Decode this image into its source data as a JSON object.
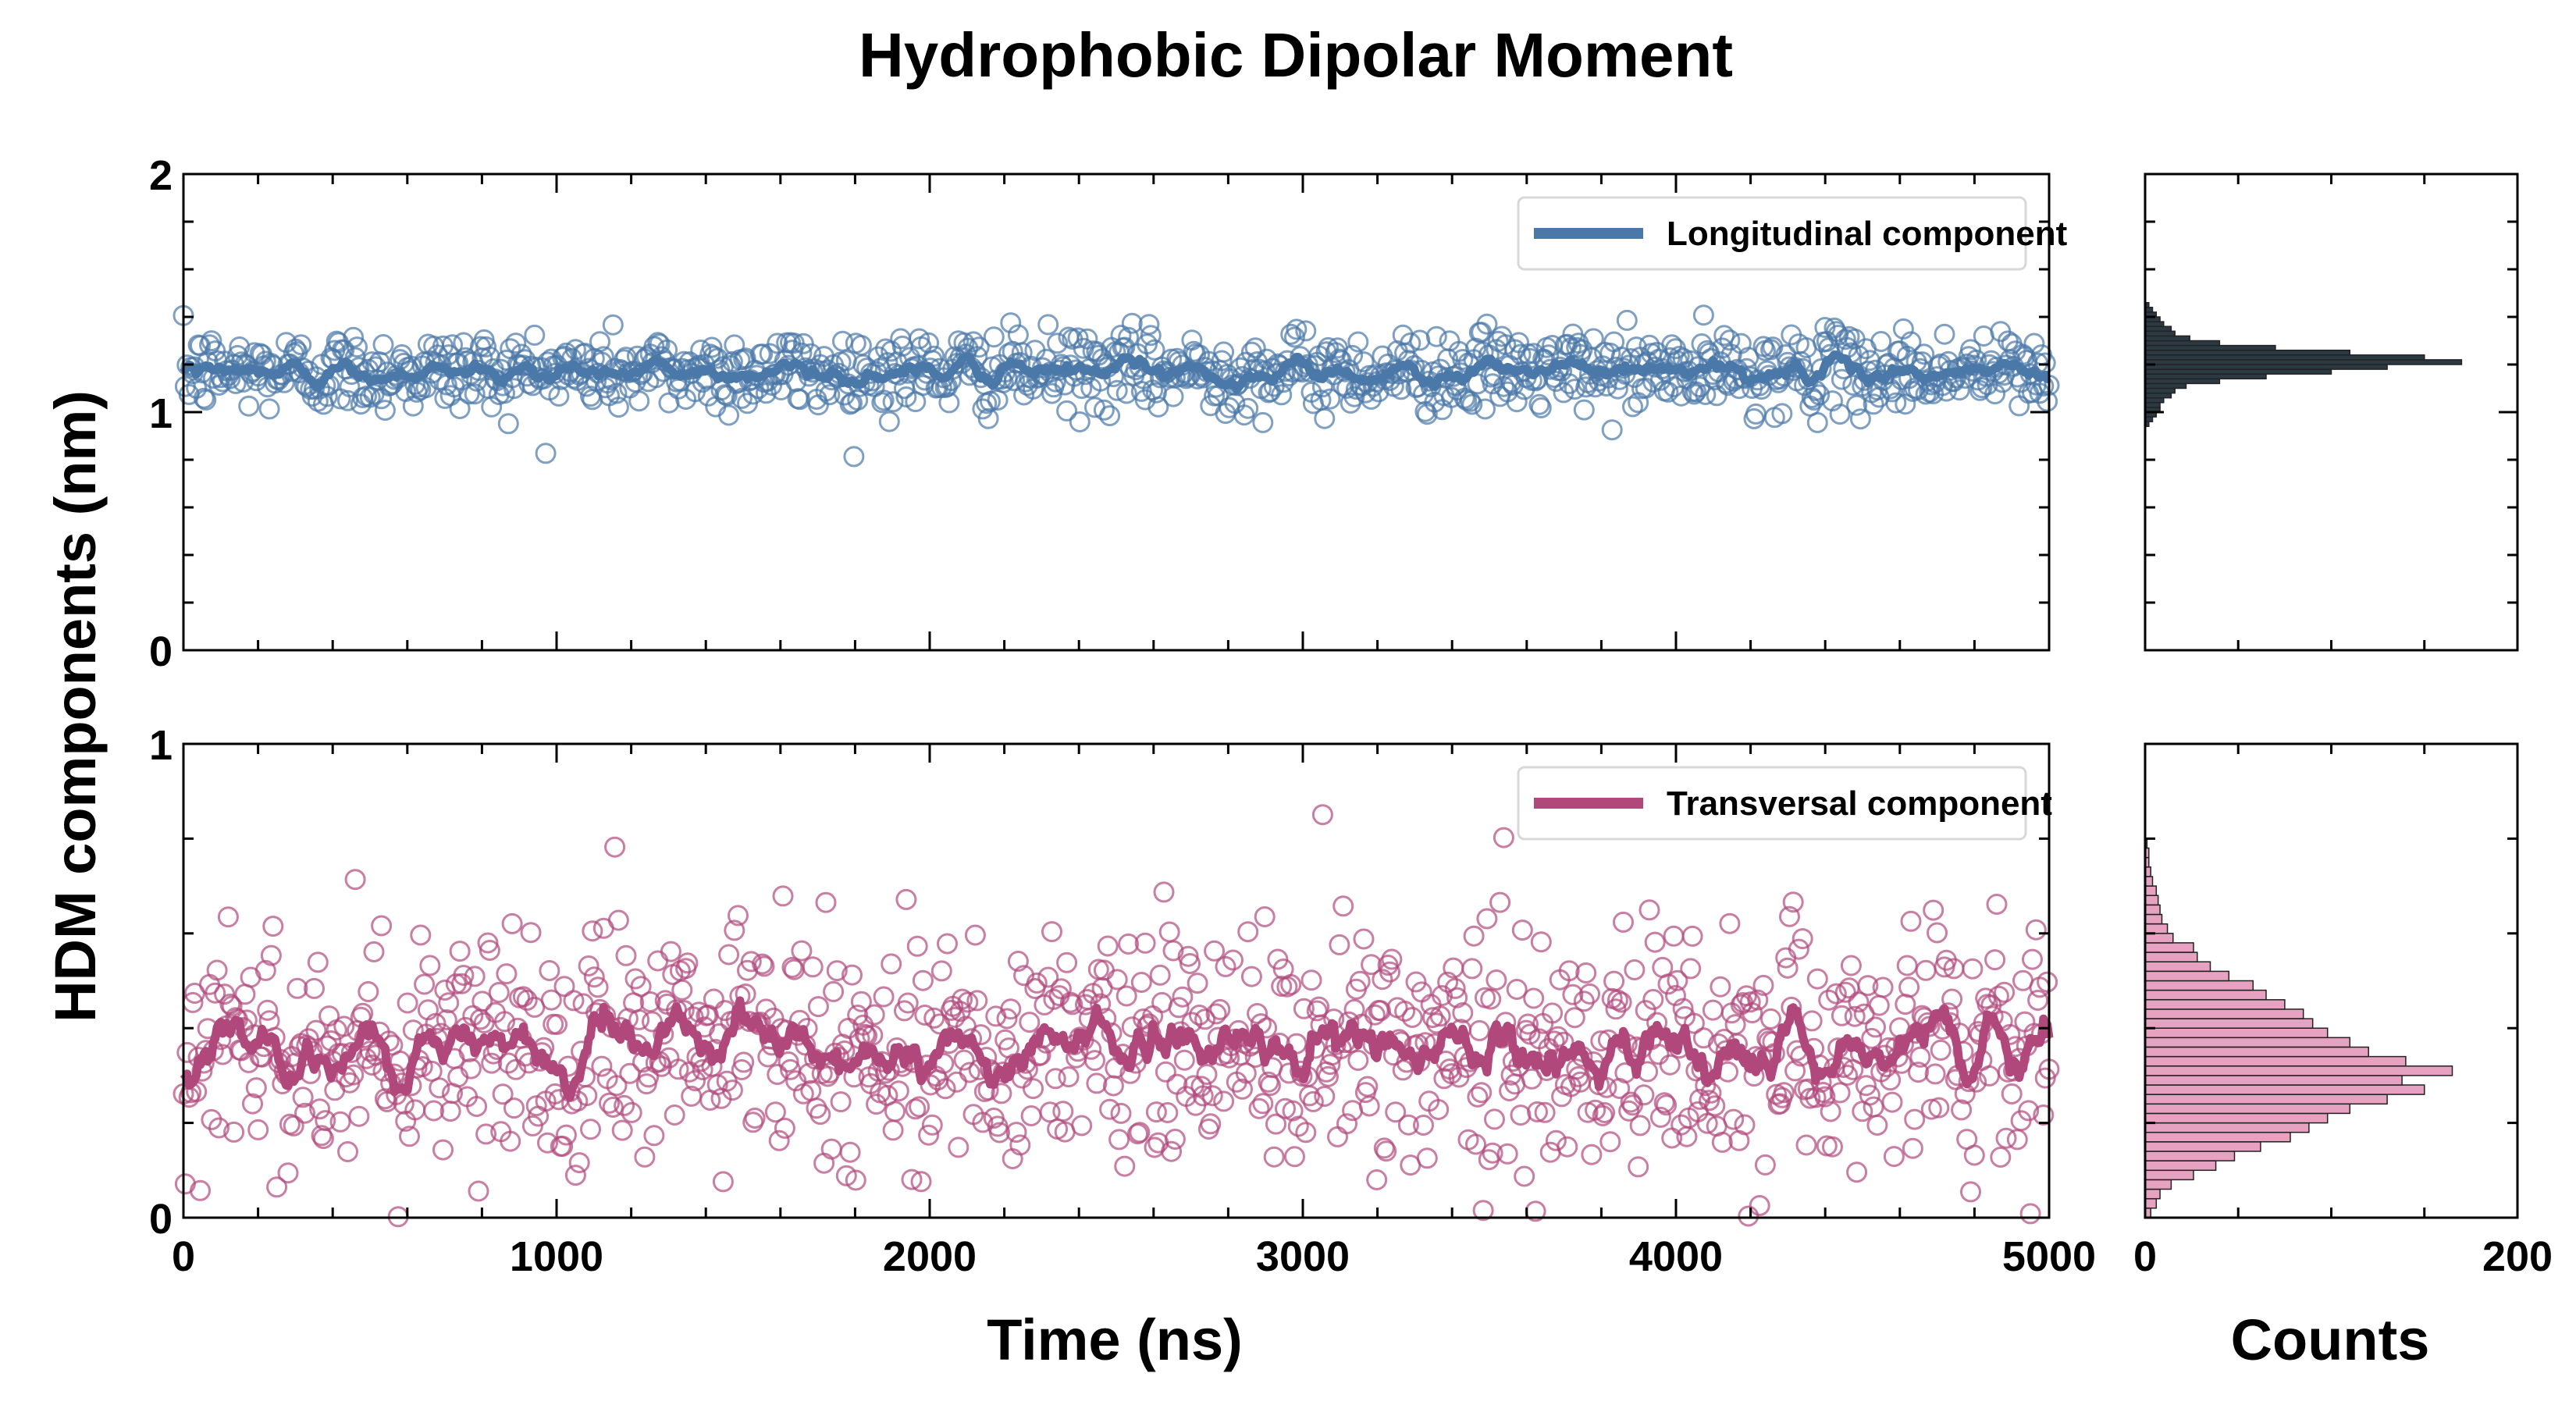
{
  "figure": {
    "title": "Hydrophobic Dipolar Moment",
    "ylabel": "HDM components (nm)",
    "xlabel": "Time (ns)",
    "hist_xlabel": "Counts"
  },
  "chart_data": [
    {
      "id": "longitudinal_timeseries",
      "type": "scatter",
      "xlabel": "",
      "ylabel": "HDM components (nm)",
      "xlim": [
        0,
        5000
      ],
      "ylim": [
        0,
        2
      ],
      "x_ticks": [
        0,
        1000,
        2000,
        3000,
        4000,
        5000
      ],
      "x_tick_labels": [
        "",
        "",
        "",
        "",
        "",
        ""
      ],
      "y_ticks": [
        0,
        1,
        2
      ],
      "y_tick_labels": [
        "0",
        "1",
        "2"
      ],
      "grid": false,
      "legend": {
        "placement": "top-right",
        "entries": [
          "Longitudinal component"
        ]
      },
      "series": [
        {
          "name": "Longitudinal component",
          "marker": "open-circle",
          "color": "#4a78a8",
          "sample_count": 1000,
          "x_range": [
            0,
            5000
          ],
          "mean": 1.17,
          "std": 0.085,
          "running_mean_line": true,
          "running_mean_range": [
            1.08,
            1.27
          ]
        }
      ]
    },
    {
      "id": "transversal_timeseries",
      "type": "scatter",
      "xlabel": "Time (ns)",
      "ylabel": "HDM components (nm)",
      "xlim": [
        0,
        5000
      ],
      "ylim": [
        0,
        1
      ],
      "x_ticks": [
        0,
        1000,
        2000,
        3000,
        4000,
        5000
      ],
      "x_tick_labels": [
        "0",
        "1000",
        "2000",
        "3000",
        "4000",
        "5000"
      ],
      "y_ticks": [
        0,
        1
      ],
      "y_tick_labels": [
        "0",
        "1"
      ],
      "grid": false,
      "legend": {
        "placement": "top-right",
        "entries": [
          "Transversal component"
        ]
      },
      "series": [
        {
          "name": "Transversal component",
          "marker": "open-circle",
          "color": "#b0487c",
          "sample_count": 1000,
          "x_range": [
            0,
            5000
          ],
          "mean": 0.36,
          "std": 0.13,
          "running_mean_line": true,
          "running_mean_range": [
            0.24,
            0.5
          ]
        }
      ]
    },
    {
      "id": "longitudinal_histogram",
      "type": "bar",
      "orientation": "horizontal",
      "xlim": [
        0,
        200
      ],
      "ylim": [
        0,
        2
      ],
      "x_ticks": [
        0,
        200
      ],
      "x_tick_labels": [
        "",
        ""
      ],
      "bar_color": "#2b3a42",
      "bin_edges": [
        0.94,
        0.96,
        0.98,
        1.0,
        1.02,
        1.04,
        1.06,
        1.08,
        1.1,
        1.12,
        1.14,
        1.16,
        1.18,
        1.2,
        1.22,
        1.24,
        1.26,
        1.28,
        1.3,
        1.32,
        1.34,
        1.36,
        1.38,
        1.4,
        1.42,
        1.44,
        1.46
      ],
      "counts": [
        2,
        4,
        6,
        8,
        8,
        10,
        14,
        16,
        22,
        40,
        65,
        100,
        130,
        170,
        150,
        110,
        70,
        40,
        24,
        16,
        14,
        10,
        8,
        6,
        4,
        2
      ]
    },
    {
      "id": "transversal_histogram",
      "type": "bar",
      "orientation": "horizontal",
      "xlabel": "Counts",
      "xlim": [
        0,
        200
      ],
      "ylim": [
        0,
        1
      ],
      "x_ticks": [
        0,
        200
      ],
      "x_tick_labels": [
        "0",
        "200"
      ],
      "bar_color": "#e6a2c0",
      "bin_edges": [
        0.0,
        0.02,
        0.04,
        0.06,
        0.08,
        0.1,
        0.12,
        0.14,
        0.16,
        0.18,
        0.2,
        0.22,
        0.24,
        0.26,
        0.28,
        0.3,
        0.32,
        0.34,
        0.36,
        0.38,
        0.4,
        0.42,
        0.44,
        0.46,
        0.48,
        0.5,
        0.52,
        0.54,
        0.56,
        0.58,
        0.6,
        0.62,
        0.64,
        0.66,
        0.68,
        0.7,
        0.72,
        0.74,
        0.76,
        0.78,
        0.8
      ],
      "counts": [
        3,
        6,
        8,
        14,
        26,
        38,
        48,
        62,
        78,
        88,
        98,
        110,
        130,
        150,
        138,
        165,
        140,
        120,
        110,
        98,
        90,
        85,
        75,
        65,
        58,
        45,
        35,
        28,
        26,
        15,
        12,
        9,
        8,
        7,
        6,
        4,
        3,
        2,
        2,
        1
      ]
    }
  ]
}
